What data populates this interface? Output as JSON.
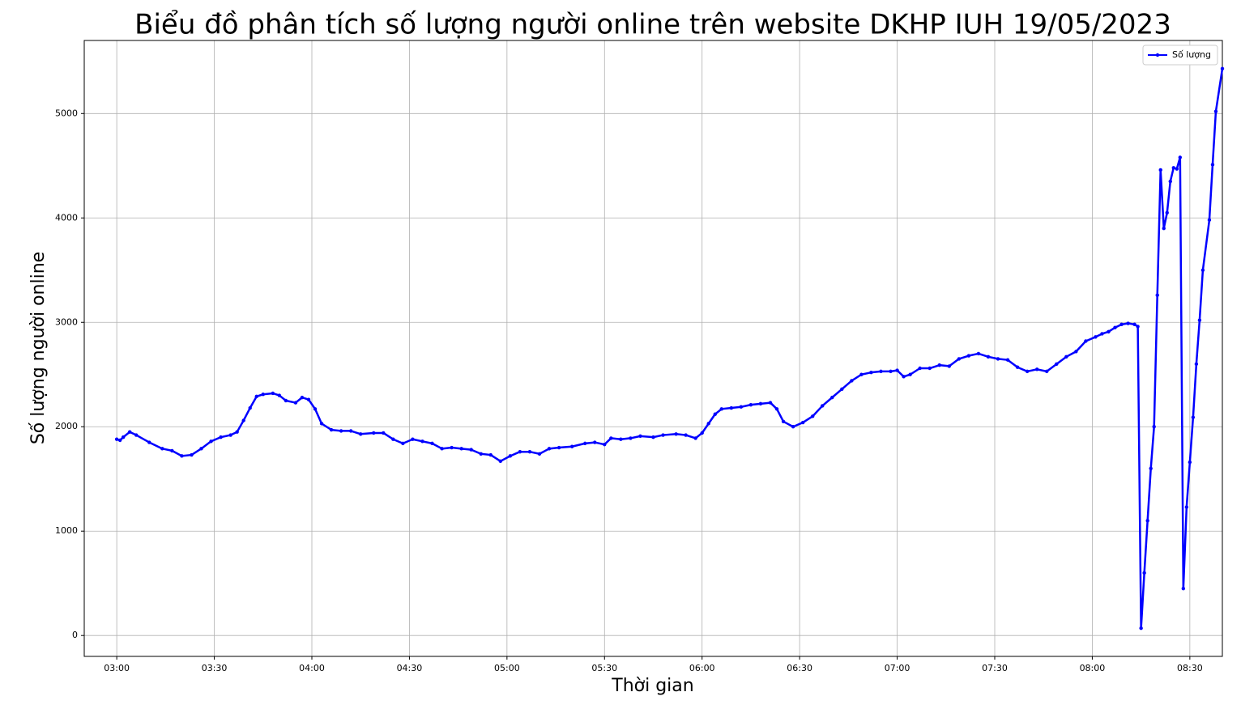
{
  "chart_data": {
    "type": "line",
    "title": "Biểu đồ phân tích số lượng người online trên website DKHP IUH 19/05/2023",
    "x_label": "Thời gian",
    "y_label": "Số lượng người online",
    "x": [
      "03:00",
      "03:01",
      "03:02",
      "03:04",
      "03:06",
      "03:10",
      "03:14",
      "03:17",
      "03:20",
      "03:23",
      "03:26",
      "03:29",
      "03:32",
      "03:35",
      "03:37",
      "03:39",
      "03:41",
      "03:43",
      "03:45",
      "03:48",
      "03:50",
      "03:52",
      "03:55",
      "03:57",
      "03:59",
      "04:01",
      "04:03",
      "04:06",
      "04:09",
      "04:12",
      "04:15",
      "04:19",
      "04:22",
      "04:25",
      "04:28",
      "04:31",
      "04:34",
      "04:37",
      "04:40",
      "04:43",
      "04:46",
      "04:49",
      "04:52",
      "04:55",
      "04:58",
      "05:01",
      "05:04",
      "05:07",
      "05:10",
      "05:13",
      "05:16",
      "05:20",
      "05:24",
      "05:27",
      "05:30",
      "05:32",
      "05:35",
      "05:38",
      "05:41",
      "05:45",
      "05:48",
      "05:52",
      "05:55",
      "05:58",
      "06:00",
      "06:02",
      "06:04",
      "06:06",
      "06:09",
      "06:12",
      "06:15",
      "06:18",
      "06:21",
      "06:23",
      "06:25",
      "06:28",
      "06:31",
      "06:34",
      "06:37",
      "06:40",
      "06:43",
      "06:46",
      "06:49",
      "06:52",
      "06:55",
      "06:58",
      "07:00",
      "07:02",
      "07:04",
      "07:07",
      "07:10",
      "07:13",
      "07:16",
      "07:19",
      "07:22",
      "07:25",
      "07:28",
      "07:31",
      "07:34",
      "07:37",
      "07:40",
      "07:43",
      "07:46",
      "07:49",
      "07:52",
      "07:55",
      "07:58",
      "08:01",
      "08:03",
      "08:05",
      "08:07",
      "08:09",
      "08:11",
      "08:13",
      "08:14",
      "08:15",
      "08:16",
      "08:17",
      "08:18",
      "08:19",
      "08:20",
      "08:21",
      "08:22",
      "08:23",
      "08:24",
      "08:25",
      "08:26",
      "08:27",
      "08:28",
      "08:29",
      "08:30",
      "08:31",
      "08:32",
      "08:33",
      "08:34",
      "08:36",
      "08:37",
      "08:38",
      "08:40"
    ],
    "series": [
      {
        "name": "Số lượng",
        "color": "#0000ff",
        "values": [
          1880,
          1870,
          1900,
          1950,
          1920,
          1850,
          1790,
          1770,
          1720,
          1730,
          1790,
          1860,
          1900,
          1920,
          1950,
          2060,
          2180,
          2290,
          2310,
          2320,
          2300,
          2250,
          2230,
          2280,
          2260,
          2170,
          2030,
          1970,
          1960,
          1960,
          1930,
          1940,
          1940,
          1880,
          1840,
          1880,
          1860,
          1840,
          1790,
          1800,
          1790,
          1780,
          1740,
          1730,
          1670,
          1720,
          1760,
          1760,
          1740,
          1790,
          1800,
          1810,
          1840,
          1850,
          1830,
          1890,
          1880,
          1890,
          1910,
          1900,
          1920,
          1930,
          1920,
          1890,
          1940,
          2030,
          2120,
          2170,
          2180,
          2190,
          2210,
          2220,
          2230,
          2170,
          2050,
          2000,
          2040,
          2100,
          2200,
          2280,
          2360,
          2440,
          2500,
          2520,
          2530,
          2530,
          2540,
          2480,
          2500,
          2560,
          2560,
          2590,
          2580,
          2650,
          2680,
          2700,
          2670,
          2650,
          2640,
          2570,
          2530,
          2550,
          2530,
          2600,
          2670,
          2720,
          2820,
          2860,
          2890,
          2910,
          2950,
          2980,
          2990,
          2980,
          2960,
          70,
          600,
          1100,
          1600,
          2000,
          3260,
          4460,
          3900,
          4050,
          4350,
          4480,
          4470,
          4580,
          450,
          1230,
          1660,
          2090,
          2600,
          3020,
          3500,
          3980,
          4510,
          5020,
          5430
        ]
      }
    ],
    "xlim": [
      "02:50",
      "08:40"
    ],
    "xticks": [
      "03:00",
      "03:30",
      "04:00",
      "04:30",
      "05:00",
      "05:30",
      "06:00",
      "06:30",
      "07:00",
      "07:30",
      "08:00",
      "08:30"
    ],
    "ylim": [
      -200,
      5700
    ],
    "yticks": [
      0,
      1000,
      2000,
      3000,
      4000,
      5000
    ],
    "grid": true,
    "legend": "upper right"
  }
}
